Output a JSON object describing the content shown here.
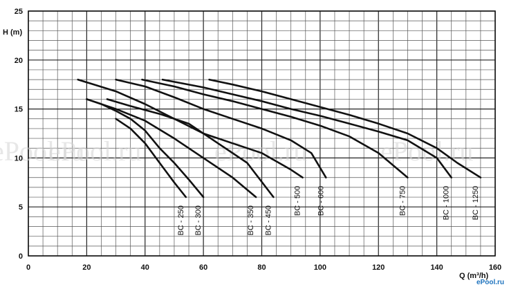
{
  "chart_data": {
    "type": "line",
    "ylabel": "H (m)",
    "xlabel": "Q (m³/h)",
    "xlim": [
      0,
      160
    ],
    "ylim": [
      0,
      25
    ],
    "xticks": [
      0,
      20,
      40,
      60,
      80,
      100,
      120,
      140,
      160
    ],
    "yticks": [
      0,
      5,
      10,
      15,
      20,
      25
    ],
    "grid": true,
    "series": [
      {
        "name": "BC - 250",
        "x": [
          30,
          35,
          40,
          45,
          50,
          54
        ],
        "y": [
          14,
          13,
          11.5,
          9.5,
          7.5,
          6
        ]
      },
      {
        "name": "BC - 300",
        "x": [
          20,
          25,
          30,
          35,
          40,
          45,
          50,
          55,
          60
        ],
        "y": [
          16,
          15.5,
          14.8,
          14,
          12.8,
          11,
          9.5,
          7.8,
          6
        ]
      },
      {
        "name": "BC - 350",
        "x": [
          20,
          30,
          40,
          50,
          60,
          70,
          78
        ],
        "y": [
          16,
          15,
          13.8,
          12,
          10,
          8,
          6
        ]
      },
      {
        "name": "BC - 450",
        "x": [
          27,
          35,
          45,
          55,
          65,
          75,
          84
        ],
        "y": [
          16,
          15.3,
          14.5,
          13.5,
          11.5,
          9.5,
          6
        ]
      },
      {
        "name": "BC - 500",
        "x": [
          17,
          30,
          40,
          50,
          60,
          70,
          80,
          90,
          94
        ],
        "y": [
          18,
          16.8,
          15.5,
          14,
          12.5,
          11.5,
          10.5,
          8.8,
          8
        ]
      },
      {
        "name": "BC - 600",
        "x": [
          30,
          40,
          50,
          60,
          70,
          80,
          90,
          97,
          102
        ],
        "y": [
          18,
          17.3,
          16.2,
          15,
          14,
          13,
          11.8,
          10.5,
          8
        ]
      },
      {
        "name": "BC - 750",
        "x": [
          39,
          50,
          60,
          70,
          80,
          90,
          100,
          110,
          120,
          130
        ],
        "y": [
          18,
          17.3,
          16.5,
          15.8,
          15,
          14.2,
          13.3,
          12.2,
          10.5,
          8
        ]
      },
      {
        "name": "BC - 1000",
        "x": [
          46,
          60,
          70,
          80,
          90,
          100,
          110,
          120,
          130,
          140,
          145
        ],
        "y": [
          18,
          17.2,
          16.5,
          15.8,
          15,
          14.3,
          13.5,
          12.7,
          11.8,
          10,
          8
        ]
      },
      {
        "name": "BC - 1250",
        "x": [
          62,
          70,
          80,
          90,
          100,
          110,
          120,
          130,
          140,
          147,
          155
        ],
        "y": [
          18,
          17.5,
          16.8,
          16,
          15.2,
          14.4,
          13.5,
          12.5,
          11,
          9.5,
          8
        ]
      }
    ]
  },
  "watermark": "ePool.ru",
  "corner_logo": "ePool.ru",
  "colors": {
    "line": "#111111",
    "grid": "#555555",
    "watermark": "#d4d4d4",
    "logo": "#1e73be"
  }
}
